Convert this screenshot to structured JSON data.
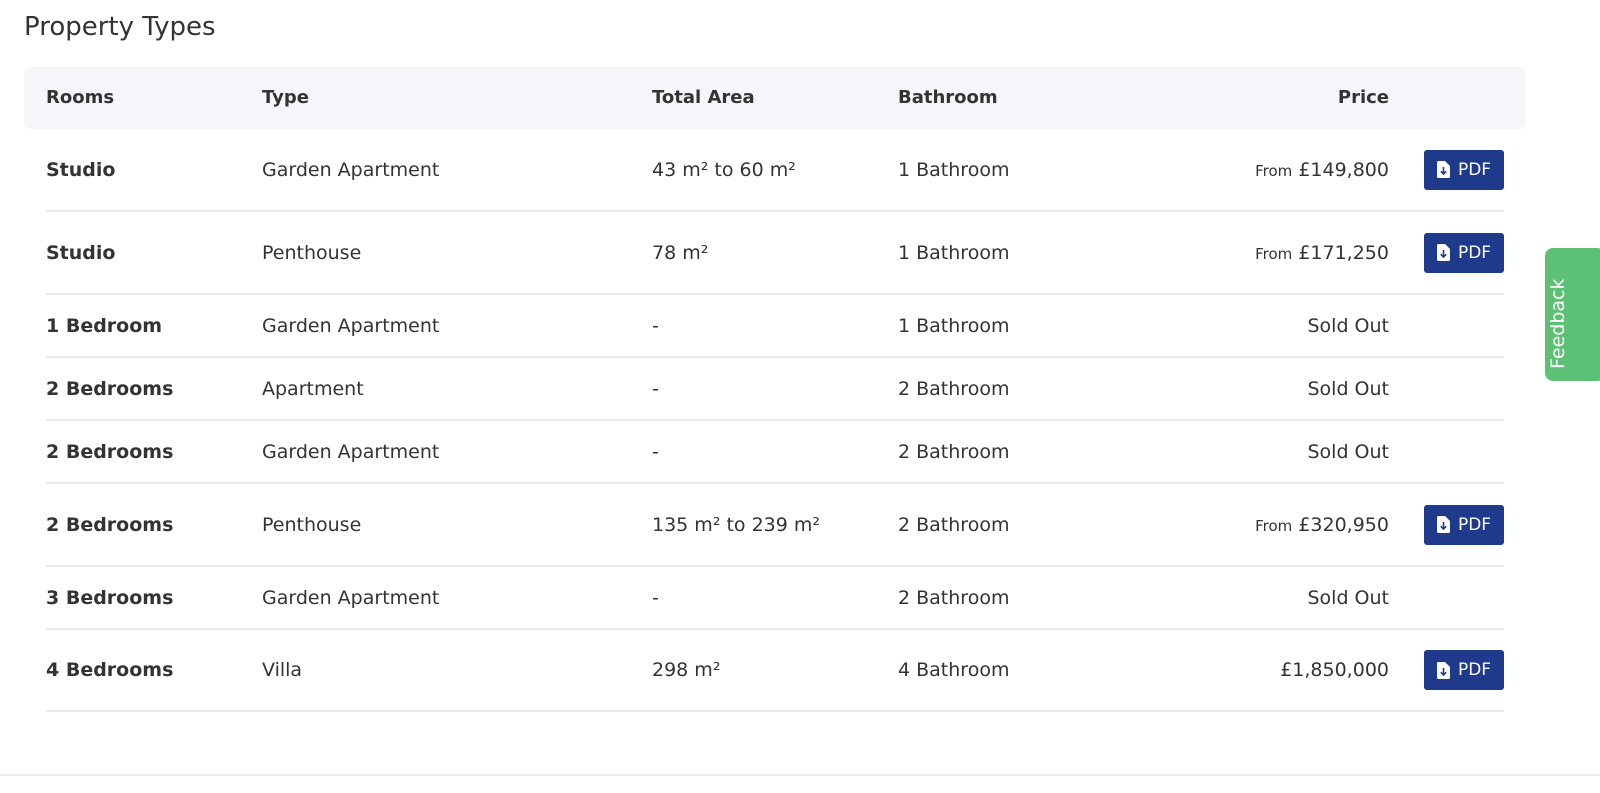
{
  "title": "Property Types",
  "columns": [
    "Rooms",
    "Type",
    "Total Area",
    "Bathroom",
    "Price"
  ],
  "rows": [
    {
      "rooms": "Studio",
      "type": "Garden Apartment",
      "area": "43 m² to 60 m²",
      "bath": "1 Bathroom",
      "prefix": "From",
      "price": "£149,800",
      "pdf": "PDF"
    },
    {
      "rooms": "Studio",
      "type": "Penthouse",
      "area": "78 m²",
      "bath": "1 Bathroom",
      "prefix": "From",
      "price": "£171,250",
      "pdf": "PDF"
    },
    {
      "rooms": "1 Bedroom",
      "type": "Garden Apartment",
      "area": "-",
      "bath": "1 Bathroom",
      "price": "Sold Out"
    },
    {
      "rooms": "2 Bedrooms",
      "type": "Apartment",
      "area": "-",
      "bath": "2 Bathroom",
      "price": "Sold Out"
    },
    {
      "rooms": "2 Bedrooms",
      "type": "Garden Apartment",
      "area": "-",
      "bath": "2 Bathroom",
      "price": "Sold Out"
    },
    {
      "rooms": "2 Bedrooms",
      "type": "Penthouse",
      "area": "135 m² to 239 m²",
      "bath": "2 Bathroom",
      "prefix": "From",
      "price": "£320,950",
      "pdf": "PDF"
    },
    {
      "rooms": "3 Bedrooms",
      "type": "Garden Apartment",
      "area": "-",
      "bath": "2 Bathroom",
      "price": "Sold Out"
    },
    {
      "rooms": "4 Bedrooms",
      "type": "Villa",
      "area": "298 m²",
      "bath": "4 Bathroom",
      "price": "£1,850,000",
      "pdf": "PDF"
    }
  ],
  "feedback": "Feedback",
  "colors": {
    "pdf_button": "#1f3a8a",
    "feedback": "#5cc174",
    "header_bg": "#f6f5fa"
  },
  "icons": {
    "pdf": "file-download-icon"
  }
}
